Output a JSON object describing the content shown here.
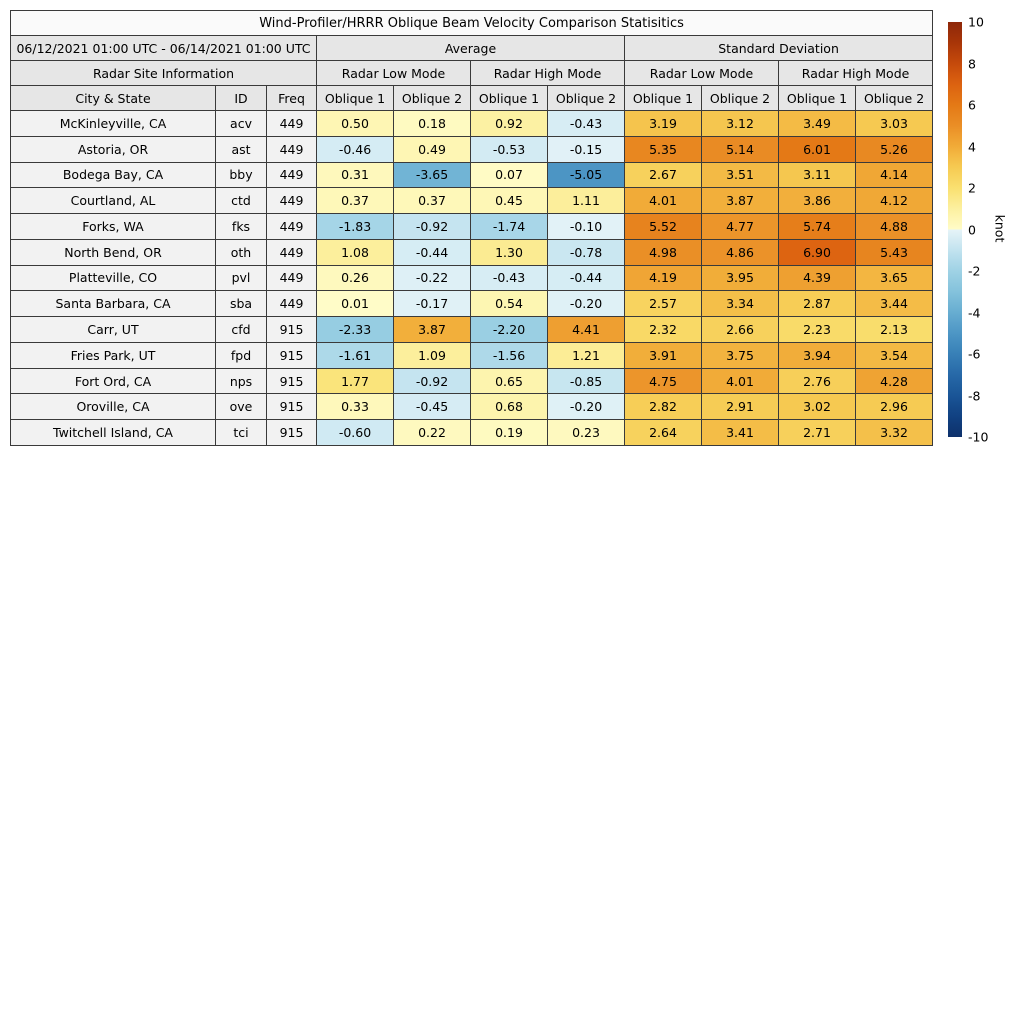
{
  "chart_data": {
    "type": "heatmap",
    "title": "Wind-Profiler/HRRR Oblique Beam Velocity Comparison Statisitics",
    "date_range": "06/12/2021 01:00 UTC - 06/14/2021 01:00 UTC",
    "site_header": "Radar Site Information",
    "column_groups": [
      {
        "label": "Average",
        "modes": [
          "Radar Low Mode",
          "Radar High Mode"
        ]
      },
      {
        "label": "Standard Deviation",
        "modes": [
          "Radar Low Mode",
          "Radar High Mode"
        ]
      }
    ],
    "columns": [
      "City & State",
      "ID",
      "Freq",
      "Oblique 1",
      "Oblique 2",
      "Oblique 1",
      "Oblique 2",
      "Oblique 1",
      "Oblique 2",
      "Oblique 1",
      "Oblique 2"
    ],
    "rows": [
      {
        "city": "McKinleyville, CA",
        "id": "acv",
        "freq": "449",
        "values": [
          0.5,
          0.18,
          0.92,
          -0.43,
          3.19,
          3.12,
          3.49,
          3.03
        ]
      },
      {
        "city": "Astoria, OR",
        "id": "ast",
        "freq": "449",
        "values": [
          -0.46,
          0.49,
          -0.53,
          -0.15,
          5.35,
          5.14,
          6.01,
          5.26
        ]
      },
      {
        "city": "Bodega Bay, CA",
        "id": "bby",
        "freq": "449",
        "values": [
          0.31,
          -3.65,
          0.07,
          -5.05,
          2.67,
          3.51,
          3.11,
          4.14
        ]
      },
      {
        "city": "Courtland, AL",
        "id": "ctd",
        "freq": "449",
        "values": [
          0.37,
          0.37,
          0.45,
          1.11,
          4.01,
          3.87,
          3.86,
          4.12
        ]
      },
      {
        "city": "Forks, WA",
        "id": "fks",
        "freq": "449",
        "values": [
          -1.83,
          -0.92,
          -1.74,
          -0.1,
          5.52,
          4.77,
          5.74,
          4.88
        ]
      },
      {
        "city": "North Bend, OR",
        "id": "oth",
        "freq": "449",
        "values": [
          1.08,
          -0.44,
          1.3,
          -0.78,
          4.98,
          4.86,
          6.9,
          5.43
        ]
      },
      {
        "city": "Platteville, CO",
        "id": "pvl",
        "freq": "449",
        "values": [
          0.26,
          -0.22,
          -0.43,
          -0.44,
          4.19,
          3.95,
          4.39,
          3.65
        ]
      },
      {
        "city": "Santa Barbara, CA",
        "id": "sba",
        "freq": "449",
        "values": [
          0.01,
          -0.17,
          0.54,
          -0.2,
          2.57,
          3.34,
          2.87,
          3.44
        ]
      },
      {
        "city": "Carr, UT",
        "id": "cfd",
        "freq": "915",
        "values": [
          -2.33,
          3.87,
          -2.2,
          4.41,
          2.32,
          2.66,
          2.23,
          2.13
        ]
      },
      {
        "city": "Fries Park, UT",
        "id": "fpd",
        "freq": "915",
        "values": [
          -1.61,
          1.09,
          -1.56,
          1.21,
          3.91,
          3.75,
          3.94,
          3.54
        ]
      },
      {
        "city": "Fort Ord, CA",
        "id": "nps",
        "freq": "915",
        "values": [
          1.77,
          -0.92,
          0.65,
          -0.85,
          4.75,
          4.01,
          2.76,
          4.28
        ]
      },
      {
        "city": "Oroville, CA",
        "id": "ove",
        "freq": "915",
        "values": [
          0.33,
          -0.45,
          0.68,
          -0.2,
          2.82,
          2.91,
          3.02,
          2.96
        ]
      },
      {
        "city": "Twitchell Island, CA",
        "id": "tci",
        "freq": "915",
        "values": [
          -0.6,
          0.22,
          0.19,
          0.23,
          2.64,
          3.41,
          2.71,
          3.32
        ]
      }
    ],
    "colorbar": {
      "label": "knot",
      "vmin": -10,
      "vmax": 10,
      "ticks": [
        10,
        8,
        6,
        4,
        2,
        0,
        -2,
        -4,
        -6,
        -8,
        -10
      ]
    },
    "colormap_stops": {
      "positive": [
        [
          0,
          "#fffcc8"
        ],
        [
          1,
          "#fcf0a0"
        ],
        [
          2,
          "#fae070"
        ],
        [
          3,
          "#f6ca52"
        ],
        [
          4,
          "#f1ab38"
        ],
        [
          5,
          "#ea8e26"
        ],
        [
          6,
          "#e47916"
        ],
        [
          7,
          "#dc6210"
        ],
        [
          8,
          "#c54a0b"
        ],
        [
          9,
          "#a83508"
        ],
        [
          10,
          "#8e2709"
        ]
      ],
      "negative": [
        [
          -10,
          "#0e316b"
        ],
        [
          -9,
          "#114182"
        ],
        [
          -8,
          "#1a5597"
        ],
        [
          -7,
          "#2769a8"
        ],
        [
          -6,
          "#3880b7"
        ],
        [
          -5,
          "#4d96c5"
        ],
        [
          -4,
          "#67add1"
        ],
        [
          -3,
          "#84c2dc"
        ],
        [
          -2,
          "#9fd2e5"
        ],
        [
          -1,
          "#c2e3ef"
        ],
        [
          0,
          "#e6f4f8"
        ]
      ]
    }
  }
}
